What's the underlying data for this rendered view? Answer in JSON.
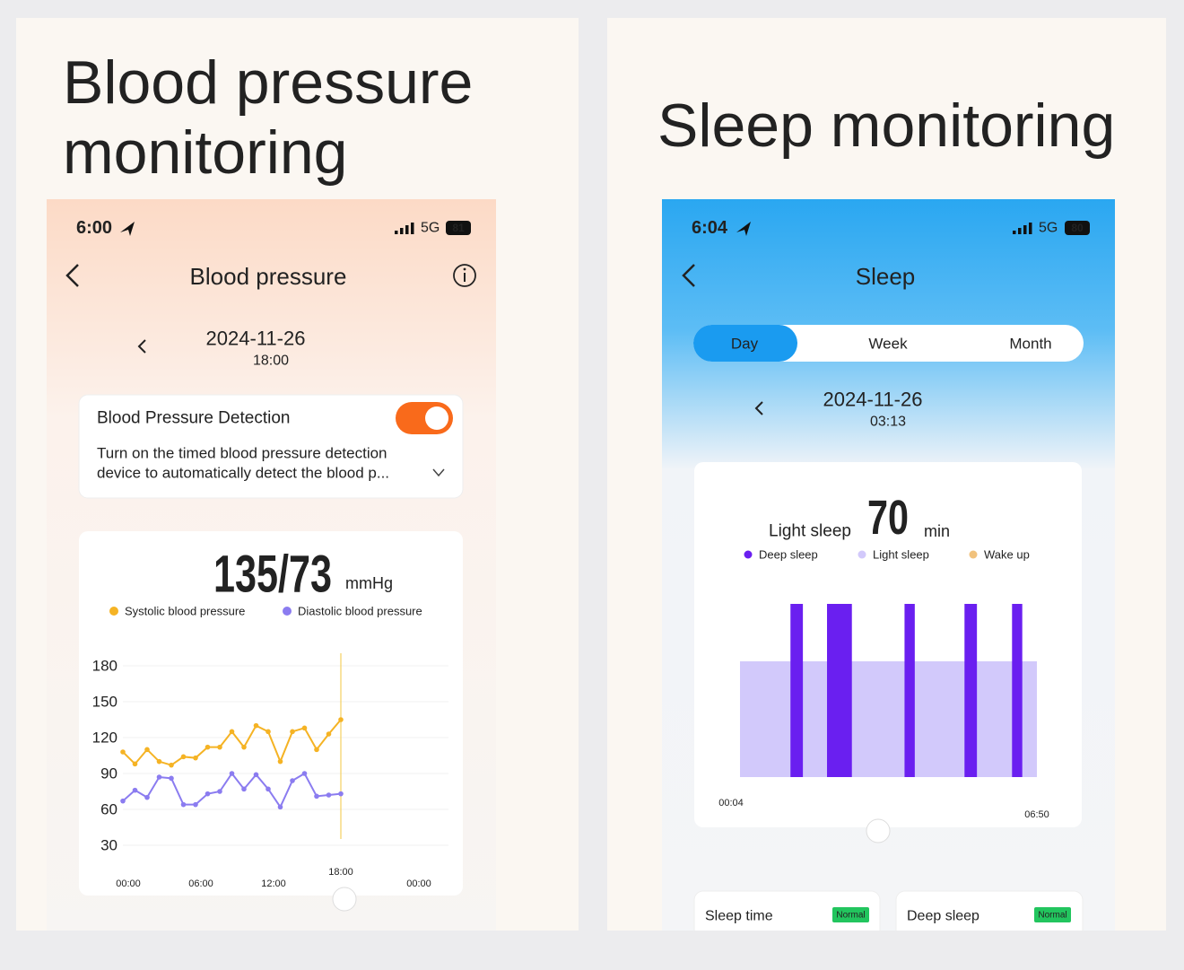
{
  "left": {
    "heading": [
      "Blood pressure",
      "monitoring"
    ],
    "status_time": "6:00",
    "network": "5G",
    "battery": 81,
    "title": "Blood pressure",
    "date": "2024-11-26",
    "time": "18:00",
    "detection": {
      "title": "Blood Pressure Detection",
      "enabled": true,
      "description": [
        "Turn on the timed blood pressure detection",
        "device to automatically detect the blood p..."
      ]
    },
    "reading": "135/73",
    "unit": "mmHg",
    "chart": {
      "type": "line",
      "x": [
        0,
        1,
        2,
        3,
        4,
        5,
        6,
        7,
        8,
        9,
        10,
        11,
        12,
        13,
        14,
        15,
        16,
        17,
        18
      ],
      "series": [
        {
          "name": "Systolic blood pressure",
          "color": "#f5b324",
          "values": [
            108,
            98,
            110,
            100,
            97,
            104,
            103,
            112,
            112,
            125,
            112,
            130,
            125,
            100,
            125,
            128,
            110,
            123,
            135
          ]
        },
        {
          "name": "Diastolic blood pressure",
          "color": "#8b7cf0",
          "values": [
            67,
            76,
            70,
            87,
            86,
            64,
            64,
            73,
            75,
            90,
            77,
            89,
            77,
            62,
            84,
            90,
            71,
            72,
            73
          ]
        }
      ],
      "xlim": [
        0,
        24
      ],
      "xticks": [
        {
          "value": 0,
          "label": "00:00"
        },
        {
          "value": 6,
          "label": "06:00"
        },
        {
          "value": 12,
          "label": "12:00"
        },
        {
          "value": 24,
          "label": "00:00"
        }
      ],
      "ylim": [
        30,
        180
      ],
      "yticks": [
        30,
        60,
        90,
        120,
        150,
        180
      ],
      "grid": true,
      "cursor": {
        "value": 18,
        "label": "18:00"
      }
    }
  },
  "right": {
    "heading": [
      "Sleep monitoring"
    ],
    "status_time": "6:04",
    "network": "5G",
    "battery": 80,
    "title": "Sleep",
    "tabs": [
      "Day",
      "Week",
      "Month"
    ],
    "active_tab": 0,
    "date": "2024-11-26",
    "time": "03:13",
    "summary": {
      "label": "Light sleep",
      "value": 70,
      "unit": "min"
    },
    "chart": {
      "type": "timeline",
      "series": [
        {
          "name": "Deep sleep",
          "color": "#6a1ff0",
          "intervals": [
            [
              73,
              90
            ],
            [
              123,
              157
            ],
            [
              229,
              243
            ],
            [
              311,
              328
            ],
            [
              376,
              390
            ]
          ]
        },
        {
          "name": "Light sleep",
          "color": "#d2c9fb",
          "intervals": [
            [
              4,
              410
            ]
          ]
        },
        {
          "name": "Wake up",
          "color": "#f1c27d",
          "intervals": []
        }
      ],
      "xlim": [
        4,
        410
      ],
      "xticks": [
        {
          "value": 4,
          "label": "00:04"
        },
        {
          "value": 410,
          "label": "06:50"
        }
      ]
    },
    "cards": [
      {
        "title": "Sleep time",
        "status": "Normal"
      },
      {
        "title": "Deep sleep",
        "status": "Normal"
      }
    ]
  }
}
